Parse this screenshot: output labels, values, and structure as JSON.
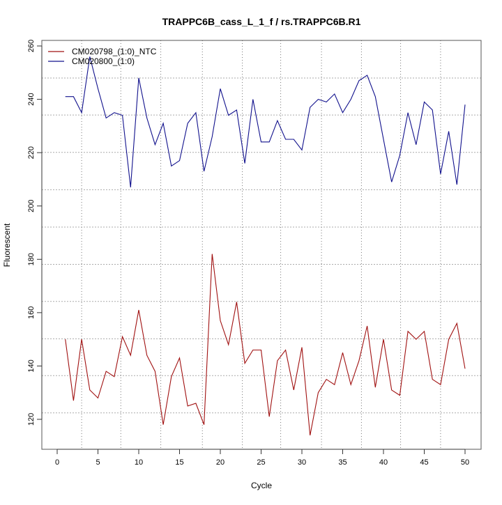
{
  "chart_data": {
    "type": "line",
    "title": "TRAPPC6B_cass_L_1_f / rs.TRAPPC6B.R1",
    "xlabel": "Cycle",
    "ylabel": "Fluorescent",
    "xlim": [
      0,
      50
    ],
    "ylim": [
      120,
      260
    ],
    "x_ticks": [
      0,
      5,
      10,
      15,
      20,
      25,
      30,
      35,
      40,
      45,
      50
    ],
    "y_ticks": [
      120,
      140,
      160,
      180,
      200,
      220,
      240,
      260
    ],
    "grid": true,
    "grid_x": [
      3.0,
      7.8,
      12.7,
      17.8,
      22.7,
      27.4,
      32.4,
      37.3,
      42.1,
      47.0
    ],
    "grid_y": [
      122.4,
      136.4,
      150.2,
      164.2,
      178.1,
      192.1,
      206.1,
      220.1,
      234.1,
      248.0
    ],
    "legend_position": "top-left",
    "x": [
      1,
      2,
      3,
      4,
      5,
      6,
      7,
      8,
      9,
      10,
      11,
      12,
      13,
      14,
      15,
      16,
      17,
      18,
      19,
      20,
      21,
      22,
      23,
      24,
      25,
      26,
      27,
      28,
      29,
      30,
      31,
      32,
      33,
      34,
      35,
      36,
      37,
      38,
      39,
      40,
      41,
      42,
      43,
      44,
      45,
      46,
      47,
      48,
      49,
      50
    ],
    "series": [
      {
        "name": "CM020798_(1:0)_NTC",
        "color": "#a01010",
        "values": [
          150,
          127,
          150,
          131,
          128,
          138,
          136,
          151,
          144,
          161,
          144,
          138,
          118,
          136,
          143,
          125,
          126,
          118,
          182,
          157,
          148,
          164,
          141,
          146,
          146,
          121,
          142,
          146,
          131,
          147,
          114,
          130,
          135,
          133,
          145,
          133,
          142,
          155,
          132,
          150,
          131,
          129,
          153,
          150,
          153,
          135,
          133,
          150,
          156,
          139
        ]
      },
      {
        "name": "CM020800_(1:0)",
        "color": "#10108c",
        "values": [
          241,
          241,
          235,
          256,
          244,
          233,
          235,
          234,
          207,
          248,
          233,
          223,
          231,
          215,
          217,
          231,
          235,
          213,
          226,
          244,
          234,
          236,
          216,
          240,
          224,
          224,
          232,
          225,
          225,
          221,
          237,
          240,
          239,
          242,
          235,
          240,
          247,
          249,
          241,
          225,
          209,
          219,
          235,
          223,
          239,
          236,
          212,
          228,
          208,
          238
        ]
      }
    ]
  }
}
